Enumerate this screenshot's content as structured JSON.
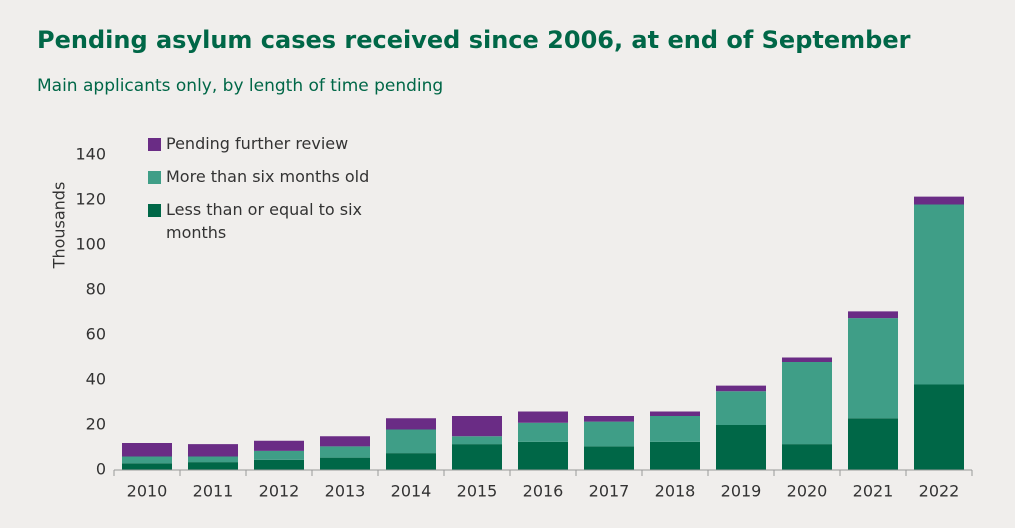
{
  "chart_data": {
    "type": "stacked-bar",
    "title": "Pending asylum cases received since 2006, at end of September",
    "subtitle": "Main applicants only, by length of time pending",
    "y_label": "Thousands",
    "categories": [
      "2010",
      "2011",
      "2012",
      "2013",
      "2014",
      "2015",
      "2016",
      "2017",
      "2018",
      "2019",
      "2020",
      "2021",
      "2022"
    ],
    "series": [
      {
        "name": "Less than or equal to six months",
        "color": "#006747",
        "values": [
          3,
          3.5,
          4.5,
          5.5,
          7.5,
          11.5,
          12.5,
          10.5,
          12.5,
          20,
          11.5,
          23,
          38
        ]
      },
      {
        "name": "More than six months old",
        "color": "#3f9e87",
        "values": [
          3,
          2.5,
          4,
          5,
          10.5,
          3.5,
          8.5,
          11,
          11.5,
          15,
          36.5,
          44.5,
          80
        ]
      },
      {
        "name": "Pending further review",
        "color": "#6a2c85",
        "values": [
          6,
          5.5,
          4.5,
          4.5,
          5,
          9,
          5,
          2.5,
          2,
          2.5,
          2,
          3,
          3.5
        ]
      }
    ],
    "ylim": [
      0,
      140
    ],
    "yticks": [
      0,
      20,
      40,
      60,
      80,
      100,
      120,
      140
    ],
    "grid": false,
    "legend": "top-left"
  }
}
